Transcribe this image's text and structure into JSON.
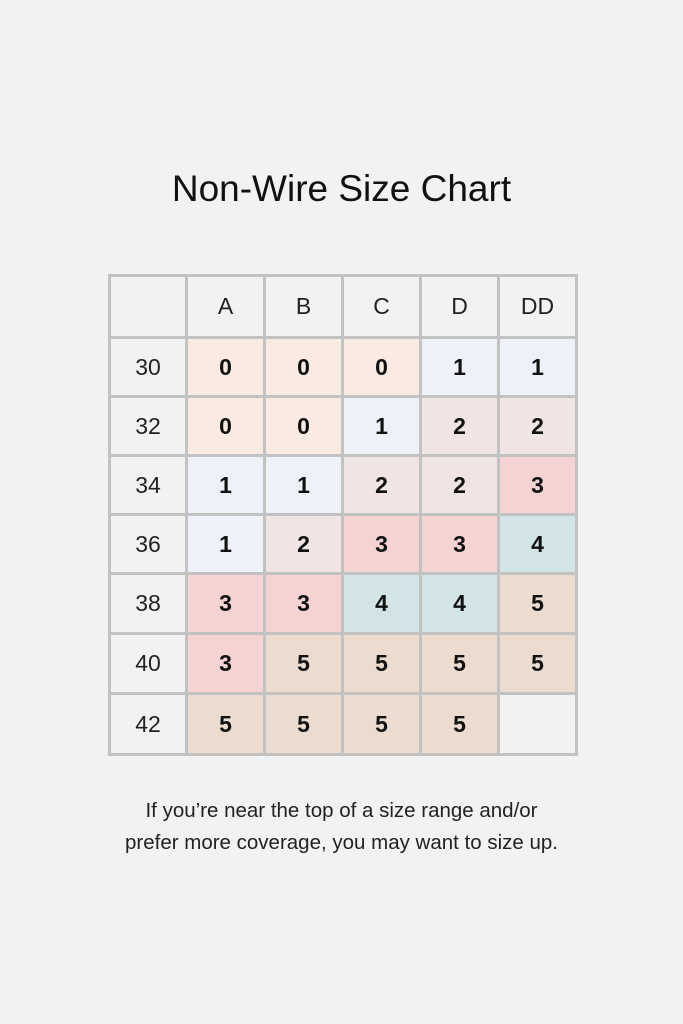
{
  "chart_data": {
    "type": "table",
    "title": "Non-Wire Size Chart",
    "columns": [
      "A",
      "B",
      "C",
      "D",
      "DD"
    ],
    "rows": [
      "30",
      "32",
      "34",
      "36",
      "38",
      "40",
      "42"
    ],
    "values": [
      [
        "0",
        "0",
        "0",
        "1",
        "1"
      ],
      [
        "0",
        "0",
        "1",
        "2",
        "2"
      ],
      [
        "1",
        "1",
        "2",
        "2",
        "3"
      ],
      [
        "1",
        "2",
        "3",
        "3",
        "4"
      ],
      [
        "3",
        "3",
        "4",
        "4",
        "5"
      ],
      [
        "3",
        "5",
        "5",
        "5",
        "5"
      ],
      [
        "5",
        "5",
        "5",
        "5",
        ""
      ]
    ],
    "value_colors": {
      "0": "#f9ebe2",
      "1": "#eef2f8",
      "2": "#f0e4e4",
      "3": "#f5d3d2",
      "4": "#d3e4e7",
      "5": "#ecdccf"
    },
    "note_lines": [
      "If you’re near the top of a size range and/or",
      "prefer more coverage, you may want to size up."
    ]
  }
}
